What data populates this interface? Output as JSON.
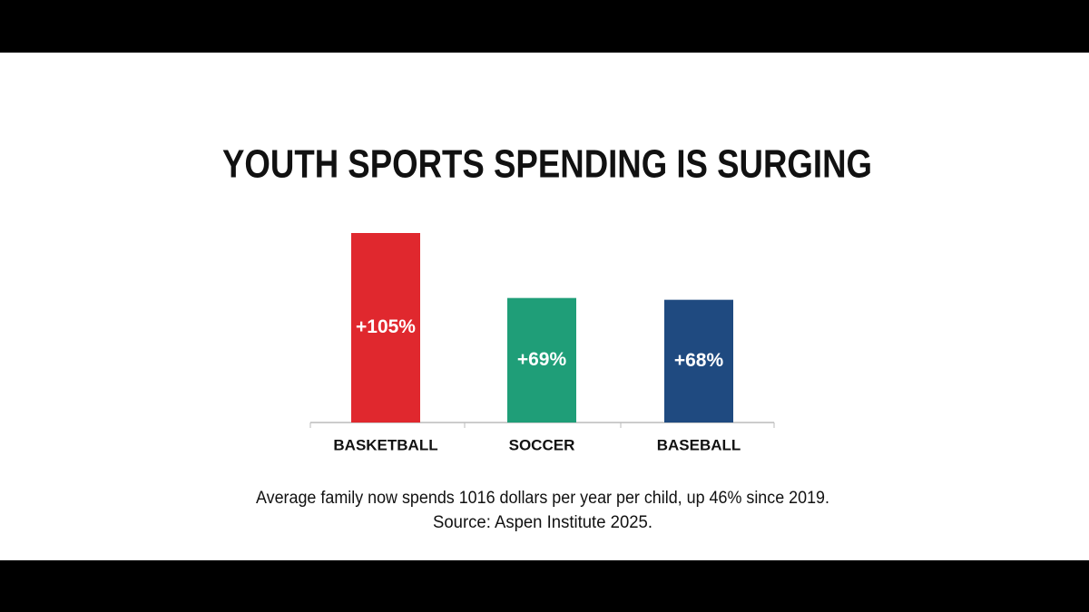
{
  "chart_data": {
    "type": "bar",
    "title": "YOUTH SPORTS SPENDING IS SURGING",
    "categories": [
      "BASKETBALL",
      "SOCCER",
      "BASEBALL"
    ],
    "values": [
      105,
      69,
      68
    ],
    "value_labels": [
      "+105%",
      "+69%",
      "+68%"
    ],
    "colors": [
      "#e0282e",
      "#1f9e78",
      "#1f4a80"
    ],
    "annotations": [
      "Average family now spends 1016 dollars per year per child, up 46% since 2019.",
      "Source: Aspen Institute 2025."
    ]
  }
}
